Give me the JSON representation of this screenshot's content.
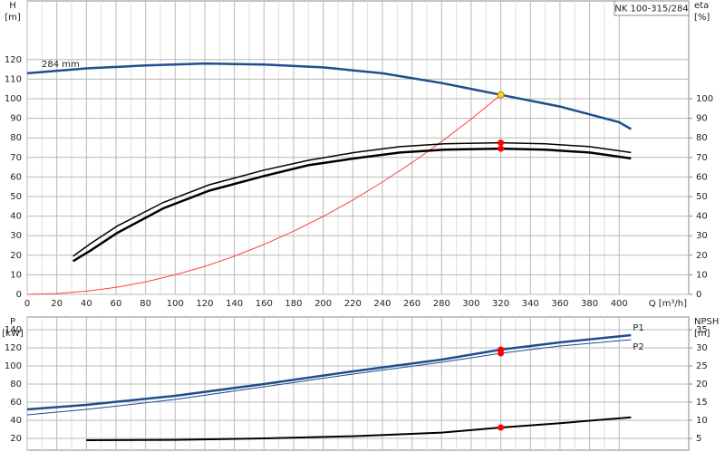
{
  "chart_data": [
    {
      "type": "line",
      "title": "NK 100-315/284",
      "ylabel": "H",
      "yunit": "[m]",
      "y2label": "eta",
      "y2unit": "[%]",
      "xlabel": "Q [m³/h]",
      "xlim": [
        0,
        447
      ],
      "xticks": [
        0,
        20,
        40,
        60,
        80,
        100,
        120,
        140,
        160,
        180,
        200,
        220,
        240,
        260,
        280,
        300,
        320,
        340,
        360,
        380,
        400
      ],
      "show_xtick_labels": true,
      "ylim": [
        0,
        150
      ],
      "yticks": [
        0,
        10,
        20,
        30,
        40,
        50,
        60,
        70,
        80,
        90,
        100,
        110,
        120
      ],
      "y2lim": [
        0,
        150
      ],
      "y2ticks": [
        0,
        10,
        20,
        30,
        40,
        50,
        60,
        70,
        80,
        90,
        100
      ],
      "grid": true,
      "series": [
        {
          "name": "284 mm",
          "color": "#1f4e8c",
          "line_width": 2.5,
          "x": [
            0,
            40,
            80,
            120,
            160,
            200,
            240,
            280,
            320,
            360,
            400,
            408
          ],
          "values": [
            113,
            115.5,
            117,
            118,
            117.5,
            116,
            113,
            108,
            102,
            96,
            88,
            84.5
          ]
        },
        {
          "color": "#ff4040",
          "line_width": 1,
          "x": [
            0,
            20,
            40,
            60,
            80,
            100,
            120,
            140,
            160,
            180,
            200,
            220,
            240,
            260,
            280,
            300,
            320
          ],
          "values": [
            0,
            0.4,
            1.6,
            3.6,
            6.4,
            10,
            14.3,
            19.5,
            25.5,
            32.3,
            39.8,
            48.2,
            57.4,
            67.3,
            78.1,
            89.6,
            102
          ]
        },
        {
          "color": "#000000",
          "line_width": 1.5,
          "axis": "y2",
          "x": [
            31,
            43,
            61,
            92,
            123,
            160,
            190,
            221,
            252,
            282,
            320,
            350,
            380,
            408
          ],
          "values": [
            19.5,
            26,
            35,
            47,
            56,
            63.5,
            68.5,
            72.5,
            75.5,
            77,
            77.5,
            77,
            75.5,
            72.5
          ]
        },
        {
          "color": "#000000",
          "line_width": 2.5,
          "axis": "y2",
          "x": [
            31,
            43,
            61,
            92,
            123,
            160,
            190,
            221,
            252,
            282,
            320,
            350,
            380,
            408
          ],
          "values": [
            17,
            22.5,
            31.5,
            44,
            53,
            60.5,
            66,
            69.5,
            72.5,
            74,
            74.5,
            74,
            72.5,
            69.5
          ]
        }
      ],
      "points": [
        {
          "x": 320,
          "y": 102,
          "color": "#ffd21f"
        },
        {
          "x": 320,
          "y": 77.5,
          "color": "#ff0000",
          "axis": "y2"
        },
        {
          "x": 320,
          "y": 74.5,
          "color": "#ff0000",
          "axis": "y2"
        }
      ]
    },
    {
      "type": "line",
      "ylabel": "P",
      "yunit": "[kW]",
      "y2label": "NPSH",
      "y2unit": "[m]",
      "xlim": [
        0,
        447
      ],
      "xticks": [
        0,
        20,
        40,
        60,
        80,
        100,
        120,
        140,
        160,
        180,
        200,
        220,
        240,
        260,
        280,
        300,
        320,
        340,
        360,
        380,
        400
      ],
      "show_xtick_labels": false,
      "ylim": [
        7,
        154
      ],
      "yticks": [
        20,
        40,
        60,
        80,
        100,
        120,
        140
      ],
      "y2lim": [
        1.75,
        38.5
      ],
      "y2ticks": [
        5,
        10,
        15,
        20,
        25,
        30,
        35
      ],
      "grid": true,
      "series": [
        {
          "name": "P1",
          "color": "#1f4e8c",
          "line_width": 2.5,
          "x": [
            0,
            40,
            100,
            160,
            220,
            280,
            320,
            360,
            408
          ],
          "values": [
            52,
            57,
            67,
            80,
            94,
            107,
            118,
            126,
            134
          ]
        },
        {
          "name": "P2",
          "color": "#1f4e8c",
          "line_width": 1,
          "x": [
            0,
            40,
            100,
            160,
            220,
            280,
            320,
            360,
            408
          ],
          "values": [
            46,
            52,
            63,
            77,
            91,
            104,
            114,
            122,
            129
          ]
        },
        {
          "color": "#000000",
          "line_width": 2,
          "axis": "y2",
          "x": [
            40,
            100,
            160,
            220,
            280,
            320,
            360,
            408
          ],
          "values": [
            4.5,
            4.6,
            5,
            5.6,
            6.6,
            8,
            9.2,
            10.8
          ]
        }
      ],
      "points": [
        {
          "x": 320,
          "y": 118,
          "color": "#ff0000"
        },
        {
          "x": 320,
          "y": 114,
          "color": "#ff0000"
        },
        {
          "x": 320,
          "y": 8,
          "color": "#ff0000",
          "axis": "y2"
        }
      ]
    }
  ]
}
